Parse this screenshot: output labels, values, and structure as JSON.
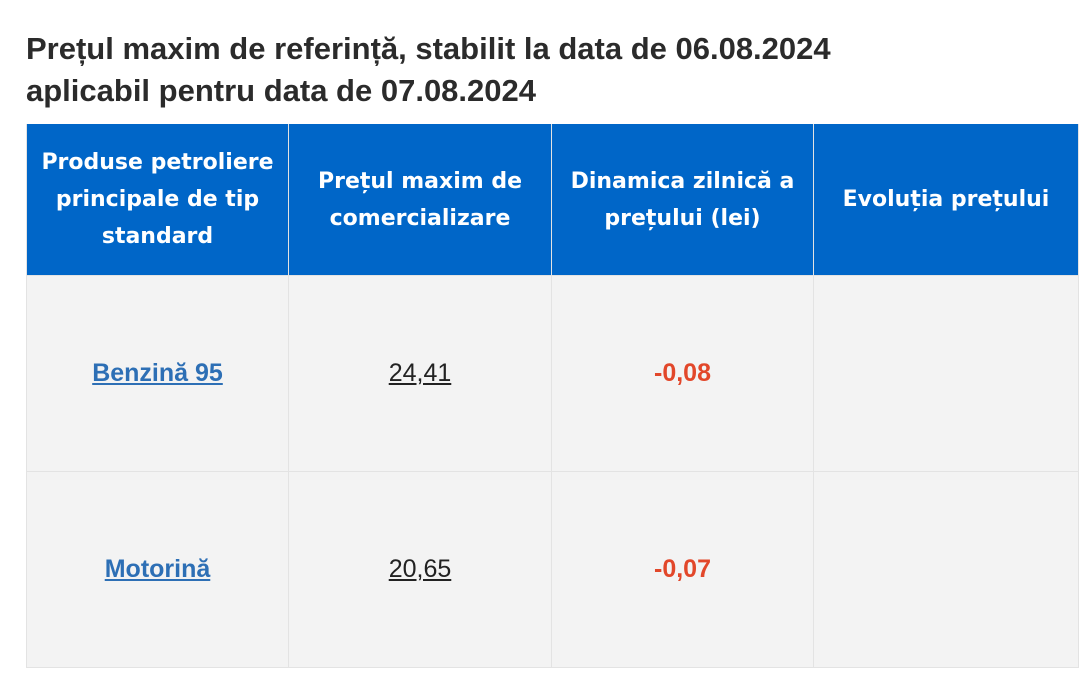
{
  "title": {
    "line1": "Prețul maxim de referință, stabilit la data de 06.08.2024",
    "line2": "aplicabil pentru data de 07.08.2024"
  },
  "table": {
    "headers": [
      "Produse petroliere principale de tip standard",
      "Prețul maxim de comercializare",
      "Dinamica zilnică a prețului (lei)",
      "Evoluția prețului"
    ],
    "rows": [
      {
        "product": "Benzină 95",
        "price": "24,41",
        "change": "-0,08",
        "evolution": ""
      },
      {
        "product": "Motorină",
        "price": "20,65",
        "change": "-0,07",
        "evolution": ""
      }
    ]
  },
  "colors": {
    "header_bg": "#0066c8",
    "link": "#2d6fb5",
    "negative_change": "#e2472a",
    "cell_bg": "#f3f3f3"
  }
}
